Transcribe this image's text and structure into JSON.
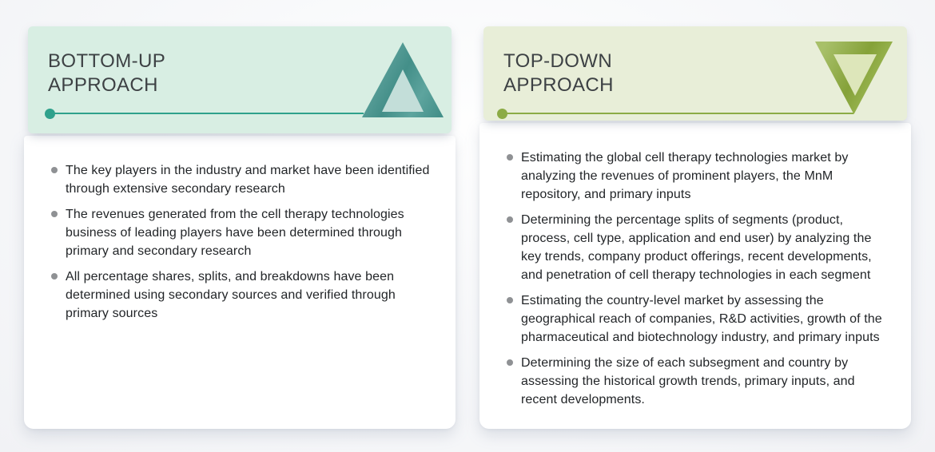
{
  "colors": {
    "bottom_up_header_bg": "#d8eee3",
    "bottom_up_accent": "#2fa18c",
    "bottom_up_triangle": "#4b9a93",
    "bottom_up_triangle_inner": "#c3ded9",
    "top_down_header_bg": "#e8eed8",
    "top_down_accent": "#8cab45",
    "top_down_triangle": "#8fae3f",
    "top_down_triangle_inner": "#dde6ba",
    "title_text": "#3d4144",
    "body_text": "#222528",
    "bullet": "#8f9194"
  },
  "cards": [
    {
      "id": "bottom-up",
      "title": "BOTTOM-UP\nAPPROACH",
      "triangle_icon": "up-triangle-icon",
      "bullets": [
        "The key players in the industry and market have been identified through extensive secondary research",
        "The revenues generated from the cell therapy technologies business of leading players have been determined through primary and secondary research",
        "All percentage shares, splits, and breakdowns have been determined using secondary sources and verified through primary sources"
      ]
    },
    {
      "id": "top-down",
      "title": "TOP-DOWN\nAPPROACH",
      "triangle_icon": "down-triangle-icon",
      "bullets": [
        "Estimating the global cell therapy technologies market by analyzing the revenues of prominent players, the MnM repository, and primary inputs",
        "Determining the percentage splits of segments (product, process, cell type, application and end user) by analyzing the key trends, company product offerings, recent developments, and penetration of cell therapy technologies in each segment",
        "Estimating the country-level market by assessing the geographical reach of companies, R&D activities, growth of the pharmaceutical and biotechnology industry, and primary inputs",
        "Determining the size of each subsegment and country by assessing the historical growth trends, primary inputs, and recent developments."
      ]
    }
  ]
}
